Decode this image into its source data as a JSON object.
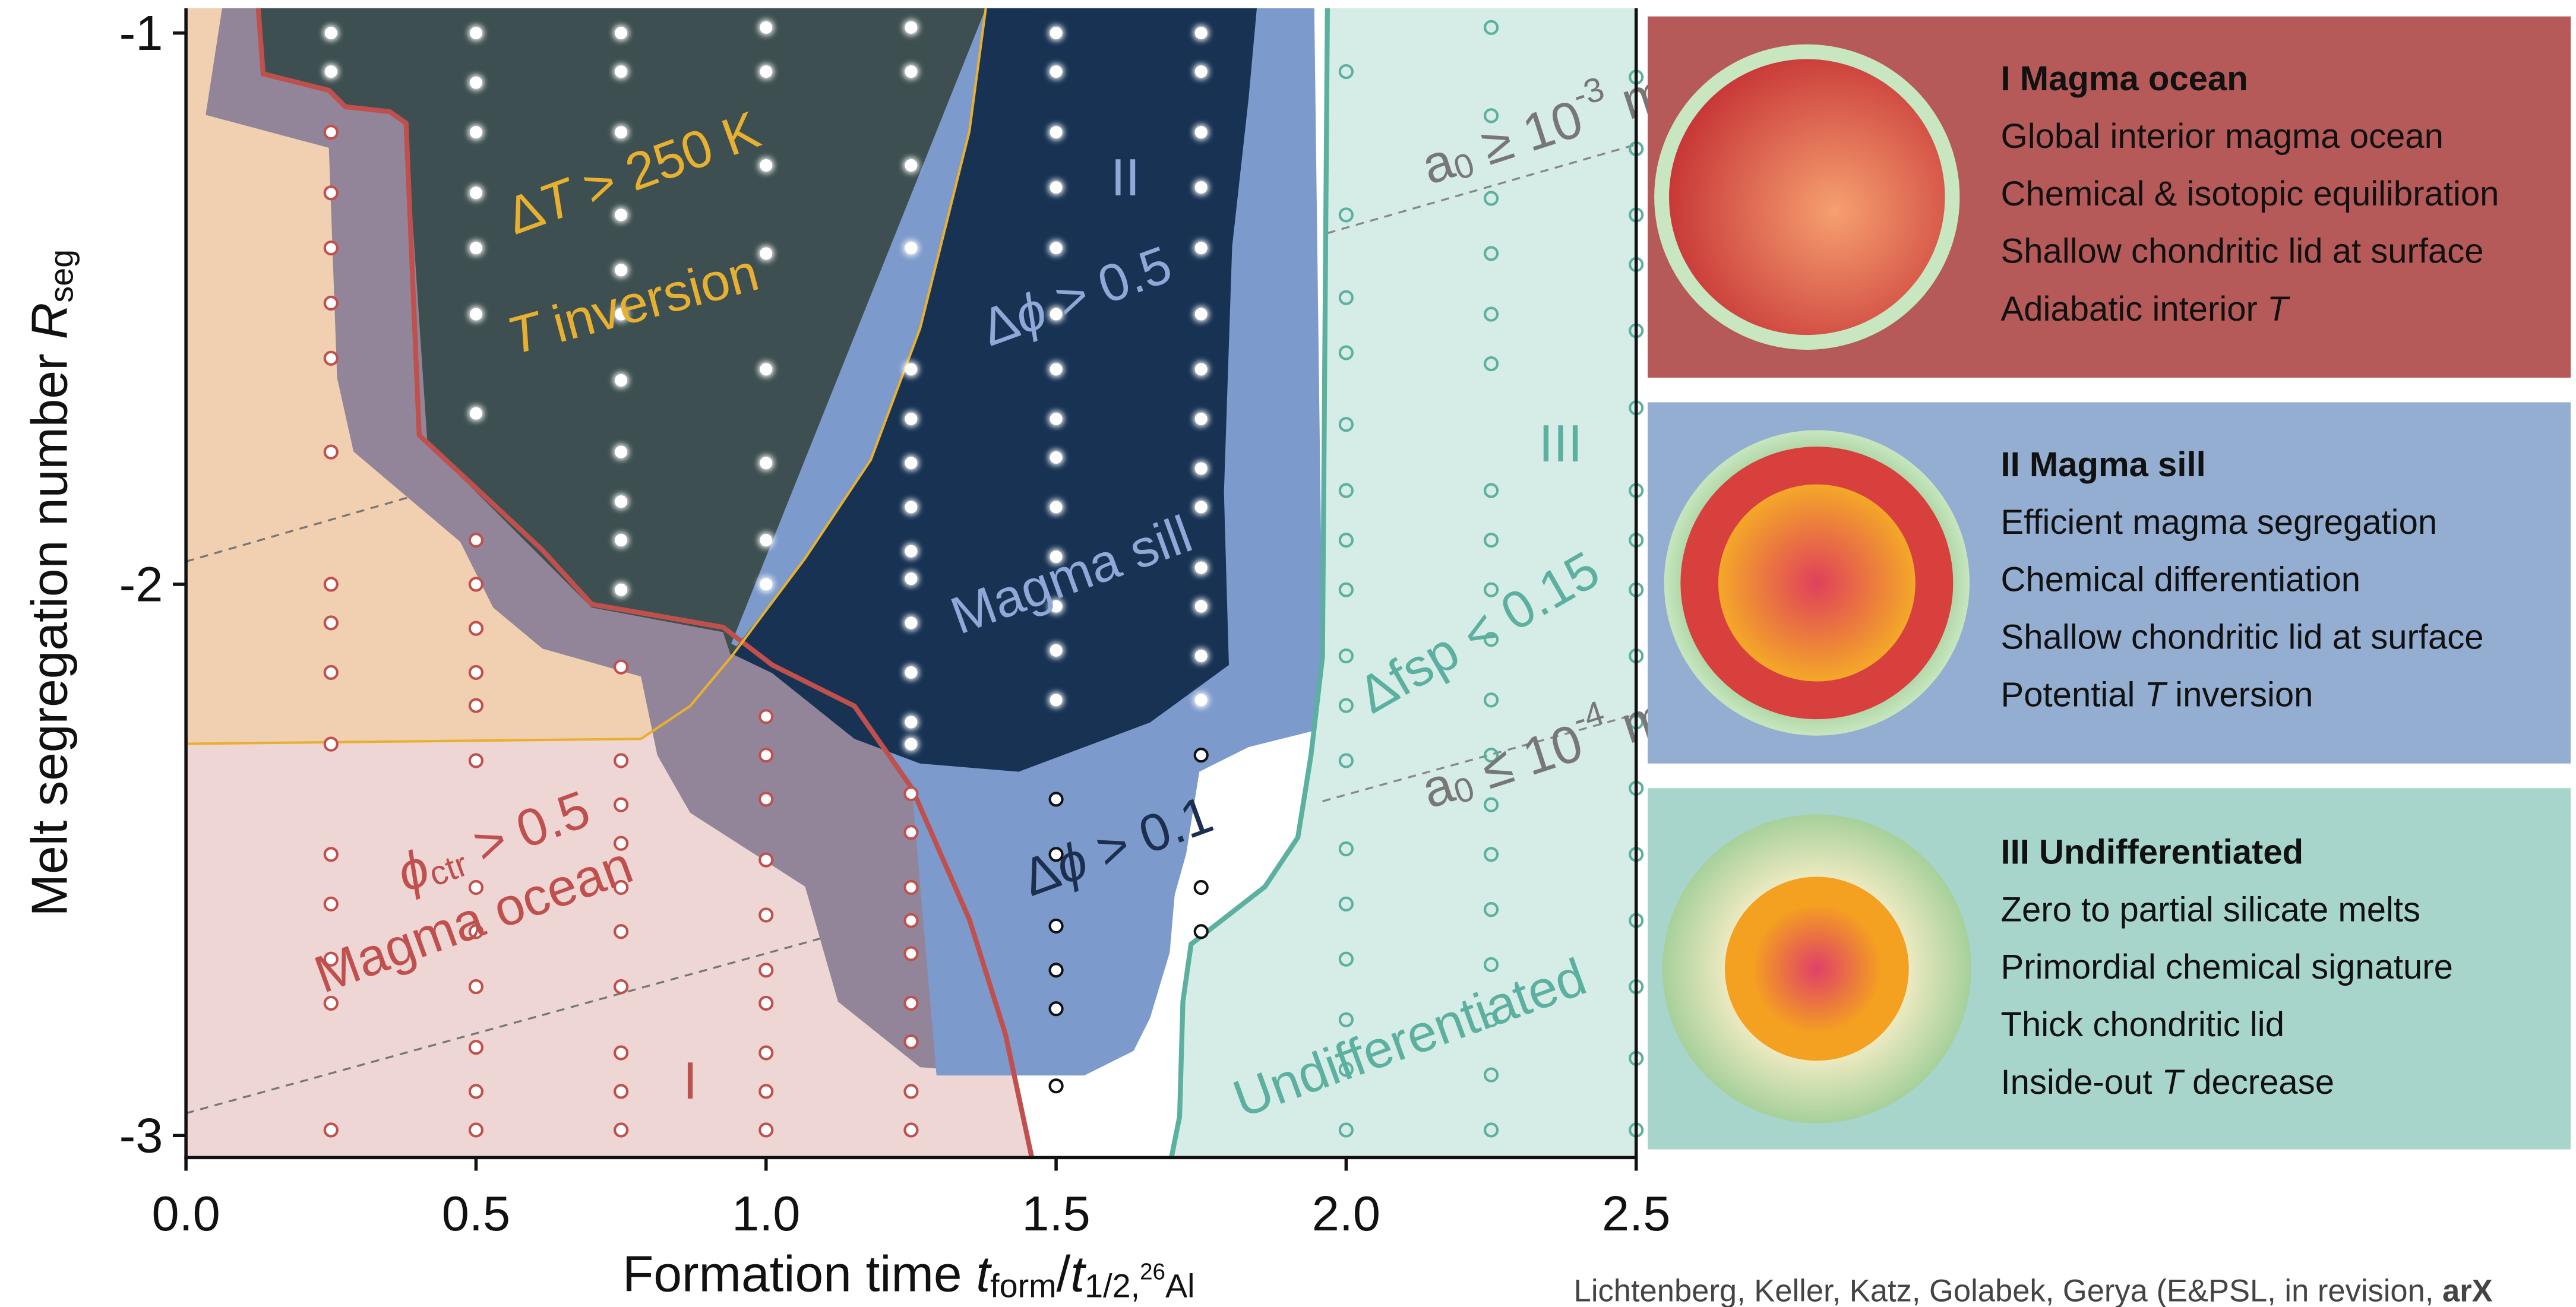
{
  "chart_data": {
    "type": "scatter",
    "xlabel": [
      {
        "text": "Formation time "
      },
      {
        "text": "t",
        "style": "italic"
      },
      {
        "text": "form",
        "style": "sub"
      },
      {
        "text": "/"
      },
      {
        "text": "t",
        "style": "italic"
      },
      {
        "text": "1/2,",
        "style": "sub"
      },
      {
        "text": "26",
        "style": "subsup"
      },
      {
        "text": "Al",
        "style": "sub"
      }
    ],
    "ylabel": [
      {
        "text": "Melt segregation number "
      },
      {
        "text": "R",
        "style": "italic"
      },
      {
        "text": "seg",
        "style": "sub"
      }
    ],
    "xlim": [
      0,
      2.5
    ],
    "ylim": [
      -3.04,
      -0.955
    ],
    "xticks": [
      {
        "value": 0,
        "label": "0.0"
      },
      0.5,
      {
        "value": 1,
        "label": "1.0"
      },
      1.5,
      {
        "value": 2,
        "label": "2.0"
      },
      2.5
    ],
    "yticks": [
      -1,
      -2,
      -3
    ],
    "grid": false,
    "series": [
      {
        "name": "Magma ocean",
        "color": "#c0504d",
        "marker": "hollow",
        "x": [
          0.25,
          0.25,
          0.25,
          0.25,
          0.25,
          0.25,
          0.25,
          0.25,
          0.25,
          0.25,
          0.25,
          0.25,
          0.25,
          0.25,
          0.25,
          0.5,
          0.5,
          0.5,
          0.5,
          0.5,
          0.5,
          0.5,
          0.5,
          0.5,
          0.5,
          0.5,
          0.5,
          0.75,
          0.75,
          0.75,
          0.75,
          0.75,
          0.75,
          0.75,
          0.75,
          0.75,
          0.75,
          1,
          1,
          1,
          1,
          1,
          1,
          1,
          1,
          1,
          1,
          1.25,
          1.25,
          1.25,
          1.25,
          1.25,
          1.25,
          1.25,
          1.25,
          1.25
        ],
        "values": [
          -1.18,
          -1.29,
          -1.39,
          -1.49,
          -1.59,
          -1.76,
          -2.0,
          -2.07,
          -2.16,
          -2.29,
          -2.49,
          -2.58,
          -2.68,
          -2.76,
          -2.99,
          -1.92,
          -2.0,
          -2.08,
          -2.16,
          -2.22,
          -2.32,
          -2.55,
          -2.63,
          -2.73,
          -2.84,
          -2.92,
          -2.99,
          -2.15,
          -2.32,
          -2.4,
          -2.47,
          -2.55,
          -2.63,
          -2.73,
          -2.85,
          -2.92,
          -2.99,
          -2.24,
          -2.31,
          -2.39,
          -2.5,
          -2.6,
          -2.7,
          -2.76,
          -2.85,
          -2.92,
          -2.99,
          -2.38,
          -2.45,
          -2.55,
          -2.61,
          -2.67,
          -2.76,
          -2.83,
          -2.92,
          -2.99
        ]
      },
      {
        "name": "Magma sill",
        "color": "#ffffff",
        "marker": "filled",
        "x": [
          0.25,
          0.25,
          0.5,
          0.5,
          0.5,
          0.5,
          0.5,
          0.5,
          0.5,
          0.75,
          0.75,
          0.75,
          0.75,
          0.75,
          0.75,
          0.75,
          0.75,
          0.75,
          0.75,
          0.75,
          1,
          1,
          1,
          1,
          1,
          1,
          1,
          1,
          1.25,
          1.25,
          1.25,
          1.25,
          1.25,
          1.25,
          1.25,
          1.25,
          1.25,
          1.25,
          1.25,
          1.25,
          1.25,
          1.25,
          1.5,
          1.5,
          1.5,
          1.5,
          1.5,
          1.5,
          1.5,
          1.5,
          1.5,
          1.5,
          1.5,
          1.5,
          1.5,
          1.5,
          1.75,
          1.75,
          1.75,
          1.75,
          1.75,
          1.75,
          1.75,
          1.75,
          1.75,
          1.75,
          1.75,
          1.75,
          1.75,
          1.75
        ],
        "values": [
          -1.0,
          -1.07,
          -1.0,
          -1.09,
          -1.18,
          -1.29,
          -1.39,
          -1.51,
          -1.69,
          -1.0,
          -1.07,
          -1.18,
          -1.33,
          -1.43,
          -1.51,
          -1.63,
          -1.76,
          -1.85,
          -1.92,
          -2.01,
          -0.99,
          -1.07,
          -1.24,
          -1.4,
          -1.61,
          -1.78,
          -1.92,
          -2.0,
          -0.99,
          -1.07,
          -1.24,
          -1.39,
          -1.61,
          -1.7,
          -1.78,
          -1.86,
          -1.94,
          -1.99,
          -2.07,
          -2.16,
          -2.25,
          -2.29,
          -1.0,
          -1.07,
          -1.18,
          -1.28,
          -1.39,
          -1.51,
          -1.61,
          -1.7,
          -1.77,
          -1.86,
          -1.95,
          -2.04,
          -2.12,
          -2.21,
          -1.0,
          -1.07,
          -1.18,
          -1.28,
          -1.39,
          -1.51,
          -1.61,
          -1.7,
          -1.79,
          -1.86,
          -1.97,
          -2.04,
          -2.13,
          -2.21
        ]
      },
      {
        "color": "#111111",
        "marker": "hollow",
        "x": [
          1.5,
          1.5,
          1.5,
          1.5,
          1.5,
          1.5,
          1.75,
          1.75,
          1.75
        ],
        "values": [
          -2.39,
          -2.49,
          -2.62,
          -2.7,
          -2.77,
          -2.91,
          -2.31,
          -2.55,
          -2.63
        ]
      },
      {
        "name": "Undifferentiated",
        "color": "#5cb0a0",
        "marker": "hollow",
        "x": [
          2,
          2,
          2,
          2,
          2,
          2,
          2,
          2,
          2,
          2,
          2,
          2,
          2,
          2,
          2,
          2,
          2,
          2.25,
          2.25,
          2.25,
          2.25,
          2.25,
          2.25,
          2.25,
          2.25,
          2.25,
          2.25,
          2.25,
          2.25,
          2.25,
          2.25,
          2.25,
          2.25,
          2.25,
          2.25,
          2.25,
          2.5,
          2.5,
          2.5,
          2.5,
          2.5,
          2.5,
          2.5,
          2.5,
          2.5,
          2.5,
          2.5,
          2.5,
          2.5,
          2.5,
          2.5,
          2.5,
          2.5
        ],
        "values": [
          -1.07,
          -1.33,
          -1.48,
          -1.58,
          -1.71,
          -1.83,
          -1.92,
          -2.01,
          -2.13,
          -2.22,
          -2.32,
          -2.48,
          -2.58,
          -2.68,
          -2.79,
          -2.88,
          -2.99,
          -0.99,
          -1.15,
          -1.3,
          -1.4,
          -1.51,
          -1.6,
          -1.83,
          -1.92,
          -2.01,
          -2.1,
          -2.21,
          -2.31,
          -2.4,
          -2.49,
          -2.59,
          -2.69,
          -2.79,
          -2.89,
          -2.99,
          -1.08,
          -1.21,
          -1.33,
          -1.42,
          -1.54,
          -1.68,
          -1.83,
          -1.92,
          -2.01,
          -2.13,
          -2.25,
          -2.37,
          -2.49,
          -2.61,
          -2.73,
          -2.86,
          -2.99
        ]
      }
    ],
    "annotations": {
      "delta_t": [
        {
          "text": "Δ"
        },
        {
          "text": "T",
          "style": "italic"
        },
        {
          "text": " > 250 K"
        }
      ],
      "t_inversion": [
        {
          "text": "T",
          "style": "italic"
        },
        {
          "text": " inversion"
        }
      ],
      "regime_2": "II",
      "dphi_05": [
        {
          "text": "Δ"
        },
        {
          "text": "ϕ",
          "style": "italic"
        },
        {
          "text": " > 0.5"
        }
      ],
      "regime_3": "III",
      "dfsp": "Δfsp < 0.15",
      "a0_large": [
        {
          "text": "a"
        },
        {
          "text": "0",
          "style": "sub"
        },
        {
          "text": " ≥ 10"
        },
        {
          "text": "-3",
          "style": "sup"
        },
        {
          "text": " m"
        }
      ],
      "a0_small": [
        {
          "text": "a"
        },
        {
          "text": "0",
          "style": "sub"
        },
        {
          "text": " ≤ 10"
        },
        {
          "text": "-4",
          "style": "sup"
        },
        {
          "text": " m"
        }
      ],
      "phi_ctr": [
        {
          "text": "ϕ",
          "style": "italic"
        },
        {
          "text": "ctr",
          "style": "sub"
        },
        {
          "text": " > 0.5"
        }
      ],
      "regime_1": "I",
      "dphi_01": [
        {
          "text": "Δ"
        },
        {
          "text": "ϕ",
          "style": "italic"
        },
        {
          "text": " > 0.1"
        }
      ]
    }
  },
  "panels": [
    {
      "title": "I Magma ocean",
      "lines": [
        "Global interior magma ocean",
        "Chemical & isotopic equilibration",
        "Shallow chondritic lid at surface",
        [
          {
            "text": "Adiabatic interior "
          },
          {
            "text": "T",
            "style": "italic"
          }
        ]
      ]
    },
    {
      "title": "II Magma sill",
      "lines": [
        "Efficient magma segregation",
        "Chemical differentiation",
        "Shallow chondritic lid at surface",
        [
          {
            "text": "Potential "
          },
          {
            "text": "T",
            "style": "italic"
          },
          {
            "text": " inversion"
          }
        ]
      ]
    },
    {
      "title": "III Undifferentiated",
      "lines": [
        "Zero to partial silicate melts",
        "Primordial chemical signature",
        "Thick chondritic lid",
        [
          {
            "text": "Inside-out "
          },
          {
            "text": "T",
            "style": "italic"
          },
          {
            "text": " decrease"
          }
        ]
      ]
    }
  ],
  "footer": [
    {
      "text": "Lichtenberg, Keller, Katz, Golabek, Gerya (E&PSL, in revision, "
    },
    {
      "text": "arX",
      "style": "bold"
    }
  ]
}
